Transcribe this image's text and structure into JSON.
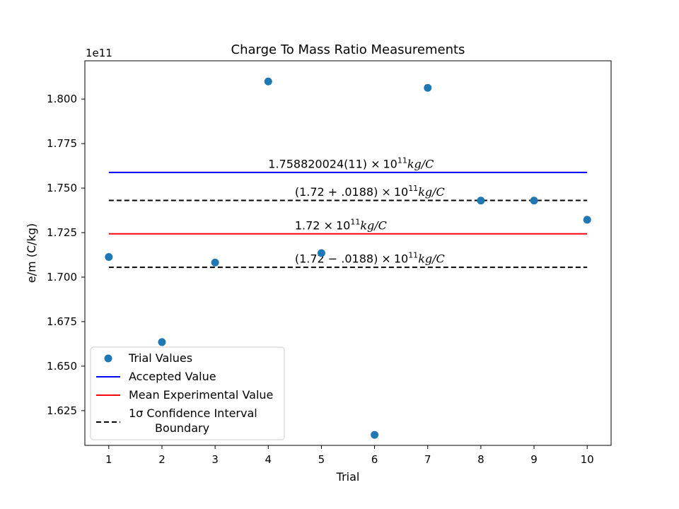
{
  "chart_data": {
    "type": "scatter",
    "title": "Charge To Mass Ratio Measurements",
    "xlabel": "Trial",
    "ylabel": "e/m (C/kg)",
    "y_multiplier_label": "1e11",
    "xlim": [
      0.55,
      10.45
    ],
    "ylim": [
      1.6055,
      1.8215
    ],
    "x_ticks": [
      1,
      2,
      3,
      4,
      5,
      6,
      7,
      8,
      9,
      10
    ],
    "y_ticks": [
      1.625,
      1.65,
      1.675,
      1.7,
      1.725,
      1.75,
      1.775,
      1.8
    ],
    "y_tick_labels": [
      "1.625",
      "1.650",
      "1.675",
      "1.700",
      "1.725",
      "1.750",
      "1.775",
      "1.800"
    ],
    "grid": false,
    "legend_position": "lower-left",
    "series": [
      {
        "name": "Trial Values",
        "kind": "scatter",
        "color": "#1f77b4",
        "x": [
          1,
          2,
          3,
          4,
          5,
          6,
          7,
          8,
          9,
          10
        ],
        "y": [
          1.7113,
          1.6635,
          1.7082,
          1.8099,
          1.7135,
          1.6114,
          1.8063,
          1.743,
          1.743,
          1.7322
        ]
      },
      {
        "name": "Accepted Value",
        "kind": "hline",
        "color": "#0000ff",
        "dash": false,
        "x": [
          1,
          10
        ],
        "y": 1.758820024
      },
      {
        "name": "Mean Experimental Value",
        "kind": "hline",
        "color": "#ff0000",
        "dash": false,
        "x": [
          1,
          10
        ],
        "y": 1.7243
      },
      {
        "name": "1σ Confidence Interval Boundary",
        "kind": "hline",
        "color": "#000000",
        "dash": true,
        "x": [
          1,
          10
        ],
        "y": 1.7431
      },
      {
        "kind": "hline",
        "color": "#000000",
        "dash": true,
        "x": [
          1,
          10
        ],
        "y": 1.7055
      }
    ],
    "legend": [
      {
        "label_lines": [
          "Trial Values"
        ],
        "marker": "dot",
        "color": "#1f77b4"
      },
      {
        "label_lines": [
          "Accepted Value"
        ],
        "marker": "line",
        "color": "#0000ff"
      },
      {
        "label_lines": [
          "Mean Experimental Value"
        ],
        "marker": "line",
        "color": "#ff0000"
      },
      {
        "label_lines": [
          "1σ Confidence Interval",
          "Boundary"
        ],
        "marker": "dash",
        "color": "#000000"
      }
    ],
    "annotations": [
      {
        "x": 4.0,
        "y": 1.7613,
        "pre": "1.758820024(11)",
        "times": "×",
        "base": "10",
        "exp": "11",
        "unit": "kg/C"
      },
      {
        "x": 4.5,
        "y": 1.7457,
        "pre": "(1.72 + .0188)",
        "times": "×",
        "base": "10",
        "exp": "11",
        "unit": "kg/C"
      },
      {
        "x": 4.5,
        "y": 1.7269,
        "pre": "1.72",
        "times": "×",
        "base": "10",
        "exp": "11",
        "unit": "kg/C"
      },
      {
        "x": 4.5,
        "y": 1.7081,
        "pre": "(1.72 − .0188)",
        "times": "×",
        "base": "10",
        "exp": "11",
        "unit": "kg/C"
      }
    ]
  }
}
